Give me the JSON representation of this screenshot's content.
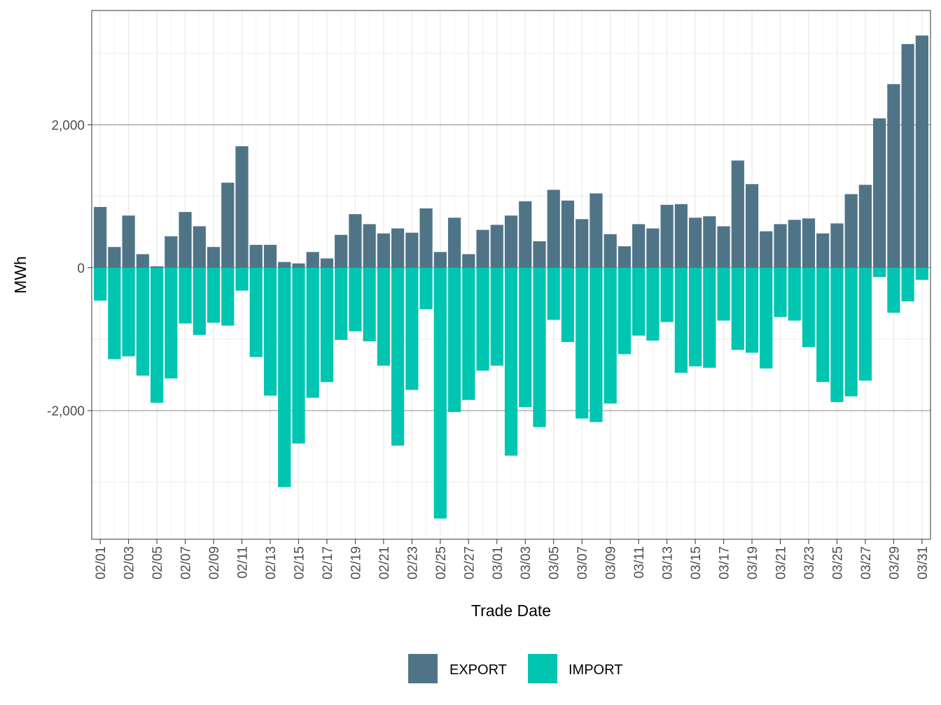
{
  "chart_data": {
    "type": "bar",
    "stacked": "diverging",
    "xlabel": "Trade Date",
    "ylabel": "MWh",
    "ylim": [
      -3800,
      3600
    ],
    "yticks": [
      -2000,
      0,
      2000
    ],
    "ytick_labels": [
      "-2,000",
      "0",
      "2,000"
    ],
    "grid": true,
    "legend_position": "bottom",
    "categories": [
      "02/01",
      "02/02",
      "02/03",
      "02/04",
      "02/05",
      "02/06",
      "02/07",
      "02/08",
      "02/09",
      "02/10",
      "02/11",
      "02/12",
      "02/13",
      "02/14",
      "02/15",
      "02/16",
      "02/17",
      "02/18",
      "02/19",
      "02/20",
      "02/21",
      "02/22",
      "02/23",
      "02/24",
      "02/25",
      "02/26",
      "02/27",
      "02/28",
      "03/01",
      "03/02",
      "03/03",
      "03/04",
      "03/05",
      "03/06",
      "03/07",
      "03/08",
      "03/09",
      "03/10",
      "03/11",
      "03/12",
      "03/13",
      "03/14",
      "03/15",
      "03/16",
      "03/17",
      "03/18",
      "03/19",
      "03/20",
      "03/21",
      "03/22",
      "03/23",
      "03/24",
      "03/25",
      "03/26",
      "03/27",
      "03/28",
      "03/29",
      "03/30",
      "03/31"
    ],
    "series": [
      {
        "name": "EXPORT",
        "color": "#507487",
        "values": [
          850,
          290,
          730,
          190,
          20,
          440,
          780,
          580,
          290,
          1190,
          1700,
          320,
          320,
          80,
          60,
          220,
          130,
          460,
          750,
          610,
          480,
          550,
          490,
          830,
          220,
          700,
          190,
          530,
          600,
          730,
          930,
          370,
          1090,
          940,
          680,
          1040,
          470,
          300,
          610,
          550,
          880,
          890,
          700,
          720,
          580,
          1500,
          1170,
          510,
          610,
          670,
          690,
          480,
          620,
          1030,
          1160,
          2090,
          2570,
          3130,
          3250
        ]
      },
      {
        "name": "IMPORT",
        "color": "#00C5B0",
        "values": [
          -460,
          -1280,
          -1240,
          -1510,
          -1890,
          -1550,
          -780,
          -940,
          -770,
          -810,
          -320,
          -1250,
          -1790,
          -3070,
          -2460,
          -1820,
          -1600,
          -1010,
          -890,
          -1030,
          -1370,
          -2490,
          -1710,
          -580,
          -3510,
          -2020,
          -1850,
          -1440,
          -1370,
          -2630,
          -1950,
          -2230,
          -730,
          -1040,
          -2110,
          -2160,
          -1900,
          -1210,
          -950,
          -1020,
          -760,
          -1470,
          -1380,
          -1400,
          -740,
          -1150,
          -1190,
          -1410,
          -690,
          -740,
          -1110,
          -1600,
          -1880,
          -1800,
          -1580,
          -130,
          -630,
          -470,
          -170
        ]
      }
    ],
    "legend": [
      "EXPORT",
      "IMPORT"
    ]
  }
}
